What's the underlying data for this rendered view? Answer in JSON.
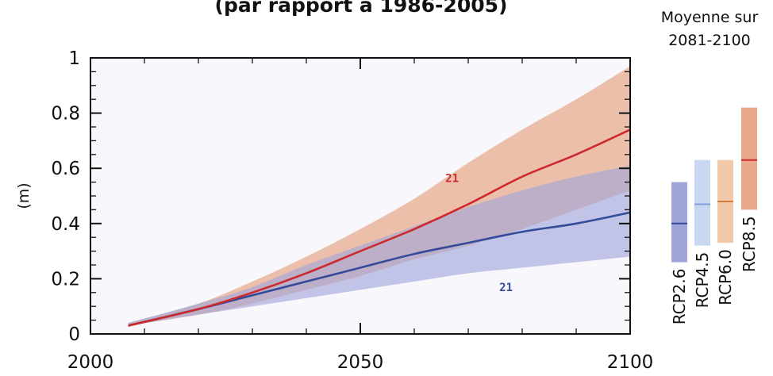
{
  "chart_data": {
    "type": "area",
    "title": "(par rapport à 1986-2005)",
    "ylabel": "(m)",
    "xlim": [
      2000,
      2100
    ],
    "ylim": [
      0,
      1
    ],
    "x_ticks": [
      "2000",
      "2050",
      "2100"
    ],
    "y_ticks": [
      "0",
      "0.2",
      "0.4",
      "0.6",
      "0.8",
      "1"
    ],
    "plot_background": "#f8f7fb",
    "series": [
      {
        "color": "#cc2a2e",
        "band_color": "#e7a98a",
        "count_label": "21",
        "x": [
          2007,
          2020,
          2030,
          2040,
          2050,
          2060,
          2070,
          2080,
          2090,
          2100
        ],
        "mean": [
          0.03,
          0.09,
          0.15,
          0.22,
          0.3,
          0.38,
          0.47,
          0.57,
          0.65,
          0.74
        ],
        "lower": [
          0.03,
          0.07,
          0.11,
          0.16,
          0.21,
          0.27,
          0.32,
          0.38,
          0.45,
          0.52
        ],
        "upper": [
          0.04,
          0.11,
          0.19,
          0.28,
          0.38,
          0.49,
          0.62,
          0.74,
          0.85,
          0.97
        ]
      },
      {
        "color": "#334b9a",
        "band_color": "#9fa5d8",
        "count_label": "21",
        "x": [
          2007,
          2020,
          2030,
          2040,
          2050,
          2060,
          2070,
          2080,
          2090,
          2100
        ],
        "mean": [
          0.03,
          0.09,
          0.14,
          0.19,
          0.24,
          0.29,
          0.33,
          0.37,
          0.4,
          0.44
        ],
        "lower": [
          0.03,
          0.07,
          0.1,
          0.13,
          0.16,
          0.19,
          0.22,
          0.24,
          0.26,
          0.28
        ],
        "upper": [
          0.04,
          0.11,
          0.17,
          0.25,
          0.32,
          0.39,
          0.46,
          0.52,
          0.57,
          0.61
        ]
      }
    ],
    "side_panel": {
      "title_line1": "Moyenne sur",
      "title_line2": "2081-2100",
      "bars": [
        {
          "label": "RCP2.6",
          "low": 0.26,
          "high": 0.55,
          "mean": 0.4,
          "fill": "#9fa5d8",
          "line": "#334b9a"
        },
        {
          "label": "RCP4.5",
          "low": 0.32,
          "high": 0.63,
          "mean": 0.47,
          "fill": "#c9d8f2",
          "line": "#7e9ddc"
        },
        {
          "label": "RCP6.0",
          "low": 0.33,
          "high": 0.63,
          "mean": 0.48,
          "fill": "#f2c9a8",
          "line": "#d97a3e"
        },
        {
          "label": "RCP8.5",
          "low": 0.45,
          "high": 0.82,
          "mean": 0.63,
          "fill": "#e7a98a",
          "line": "#cc2a2e"
        }
      ]
    }
  }
}
